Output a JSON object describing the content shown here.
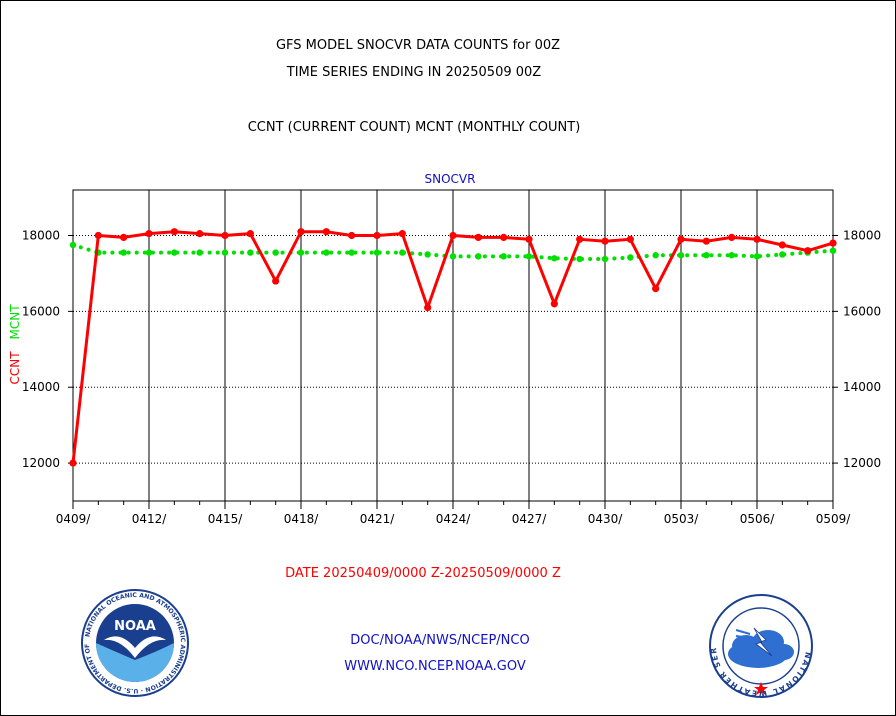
{
  "header": {
    "title_line1": "GFS MODEL SNOCVR DATA COUNTS for 00Z",
    "title_line2": "TIME SERIES ENDING IN 20250509 00Z",
    "title_line3": "CCNT (CURRENT COUNT) MCNT (MONTHLY COUNT)"
  },
  "footer": {
    "date_range": "DATE 20250409/0000 Z-20250509/0000 Z",
    "credit_line1": "DOC/NOAA/NWS/NCEP/NCO",
    "credit_line2": "WWW.NCO.NCEP.NOAA.GOV"
  },
  "logos": {
    "noaa": {
      "center_text": "NOAA",
      "ring_top": "NATIONAL OCEANIC AND ATMOSPHERIC ADMINISTRATION",
      "ring_bottom": "U.S. DEPARTMENT OF COMMERCE"
    },
    "nws": {
      "ring_text": "NATIONAL WEATHER SERVICE"
    }
  },
  "colors": {
    "ccnt": "#ff0000",
    "mcnt": "#00e000",
    "label_blue": "#1010c8",
    "grid": "#000000"
  },
  "chart_data": {
    "type": "line",
    "panel_label": "SNOCVR",
    "ylabel_ccnt": "CCNT",
    "ylabel_mcnt": "MCNT",
    "ylim": [
      11000,
      19200
    ],
    "y_ticks": [
      12000,
      14000,
      16000,
      18000
    ],
    "y_tick_labels": [
      "12000",
      "14000",
      "16000",
      "18000"
    ],
    "x_range": [
      "0409",
      "0509"
    ],
    "x_tick_labels": [
      "0409/",
      "0412/",
      "0415/",
      "0418/",
      "0421/",
      "0424/",
      "0427/",
      "0430/",
      "0503/",
      "0506/",
      "0509/"
    ],
    "grid": true,
    "x": [
      "0409",
      "0410",
      "0411",
      "0412",
      "0413",
      "0414",
      "0415",
      "0416",
      "0417",
      "0418",
      "0419",
      "0420",
      "0421",
      "0422",
      "0423",
      "0424",
      "0425",
      "0426",
      "0427",
      "0428",
      "0429",
      "0430",
      "0501",
      "0502",
      "0503",
      "0504",
      "0505",
      "0506",
      "0507",
      "0508",
      "0509"
    ],
    "series": [
      {
        "name": "CCNT",
        "color": "#ff0000",
        "style": "solid",
        "values": [
          12000,
          18000,
          17950,
          18050,
          18100,
          18050,
          18000,
          18050,
          16800,
          18100,
          18100,
          18000,
          18000,
          18050,
          16100,
          18000,
          17950,
          17950,
          17900,
          16200,
          17900,
          17850,
          17900,
          16600,
          17900,
          17850,
          17950,
          17900,
          17750,
          17600,
          17800
        ]
      },
      {
        "name": "MCNT",
        "color": "#00e000",
        "style": "dotted",
        "values": [
          17750,
          17550,
          17550,
          17550,
          17550,
          17550,
          17550,
          17550,
          17550,
          17550,
          17550,
          17550,
          17550,
          17550,
          17500,
          17450,
          17450,
          17450,
          17450,
          17400,
          17380,
          17380,
          17420,
          17480,
          17480,
          17480,
          17480,
          17450,
          17500,
          17550,
          17600
        ]
      }
    ]
  }
}
